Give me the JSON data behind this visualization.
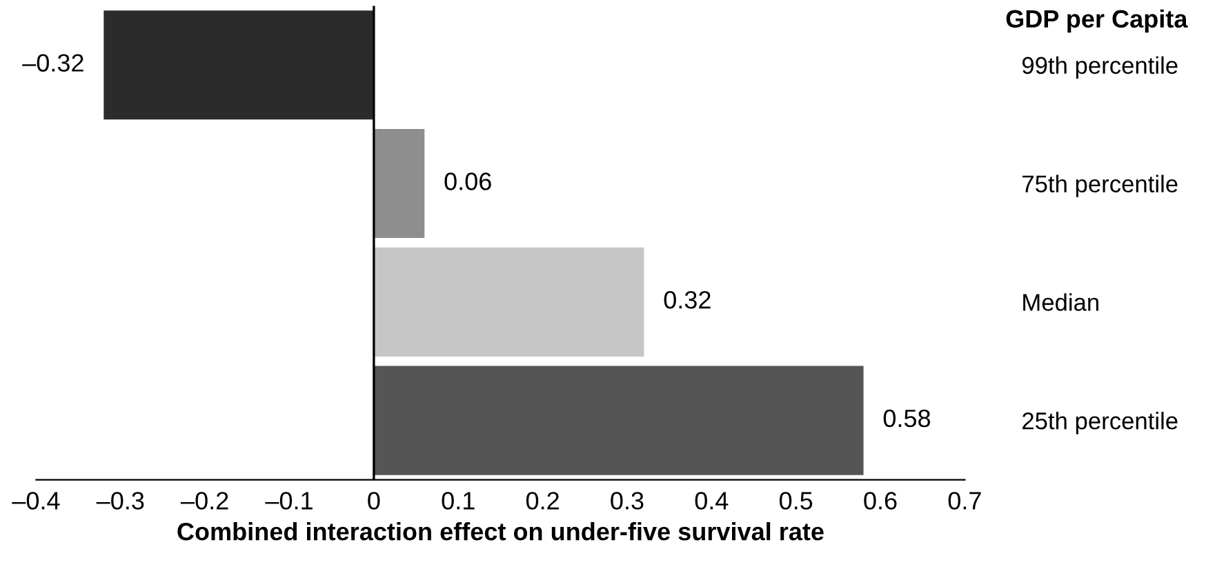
{
  "chart_data": {
    "type": "bar",
    "orientation": "horizontal",
    "categories": [
      "99th percentile",
      "75th percentile",
      "Median",
      "25th percentile"
    ],
    "values": [
      -0.32,
      0.06,
      0.32,
      0.58
    ],
    "colors": [
      "#2b2b2b",
      "#8e8e8e",
      "#c6c6c6",
      "#555555"
    ],
    "value_labels": [
      "–0.32",
      "0.06",
      "0.32",
      "0.58"
    ],
    "xlabel": "Combined interaction effect on under-five survival rate",
    "ylabel": "GDP per Capita",
    "xlim": [
      -0.4,
      0.7
    ],
    "xticks": [
      {
        "value": -0.4,
        "label": "–0.4"
      },
      {
        "value": -0.3,
        "label": "–0.3"
      },
      {
        "value": -0.2,
        "label": "–0.2"
      },
      {
        "value": -0.1,
        "label": "–0.1"
      },
      0,
      0.1,
      0.2,
      0.3,
      0.4,
      0.5,
      0.6,
      0.7
    ],
    "ref_lines": [
      {
        "axis": "x",
        "value": 0,
        "color": "#000000"
      }
    ],
    "legend": false
  }
}
